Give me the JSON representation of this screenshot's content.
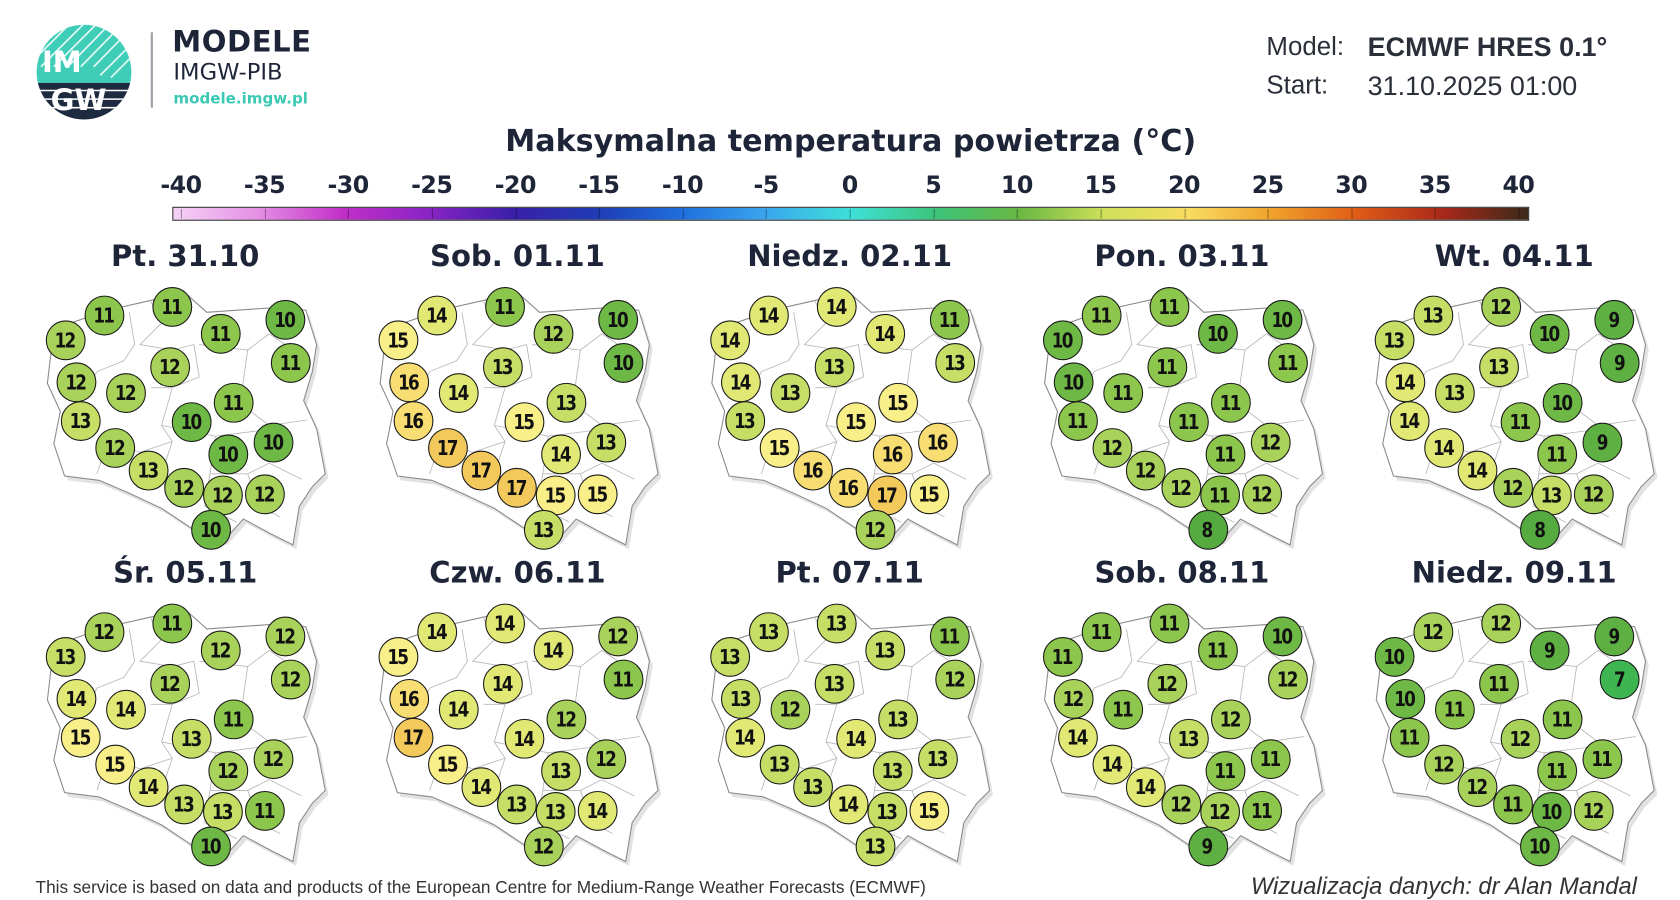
{
  "header": {
    "brand_title": "MODELE",
    "brand_subtitle": "IMGW-PIB",
    "brand_url": "modele.imgw.pl",
    "logo_text": "IMGW",
    "model_label": "Model:",
    "model_value": "ECMWF HRES 0.1°",
    "start_label": "Start:",
    "start_value": "31.10.2025 01:00"
  },
  "title": "Maksymalna temperatura powietrza (°C)",
  "colorbar": {
    "ticks": [
      "-40",
      "-35",
      "-30",
      "-25",
      "-20",
      "-15",
      "-10",
      "-5",
      "0",
      "5",
      "10",
      "15",
      "20",
      "25",
      "30",
      "35",
      "40"
    ],
    "stops": [
      {
        "v": -40,
        "color": "#f6d3f6"
      },
      {
        "v": -35,
        "color": "#e48fe4"
      },
      {
        "v": -30,
        "color": "#c22fc8"
      },
      {
        "v": -25,
        "color": "#8a24c4"
      },
      {
        "v": -20,
        "color": "#3a1fa8"
      },
      {
        "v": -15,
        "color": "#1f3cb4"
      },
      {
        "v": -10,
        "color": "#1f6fdc"
      },
      {
        "v": -5,
        "color": "#3aa6ee"
      },
      {
        "v": 0,
        "color": "#3ee0d8"
      },
      {
        "v": 5,
        "color": "#3cc47a"
      },
      {
        "v": 10,
        "color": "#6ab842"
      },
      {
        "v": 15,
        "color": "#cfe05a"
      },
      {
        "v": 20,
        "color": "#f8dc60"
      },
      {
        "v": 25,
        "color": "#f0a02a"
      },
      {
        "v": 30,
        "color": "#de5a16"
      },
      {
        "v": 35,
        "color": "#a8281a"
      },
      {
        "v": 40,
        "color": "#3c2a1a"
      }
    ]
  },
  "value_colors": {
    "7": "#3fb552",
    "8": "#55ab3f",
    "9": "#5fb043",
    "10": "#6eb845",
    "11": "#8dc64c",
    "12": "#a9d25a",
    "13": "#c6de66",
    "14": "#e1e873",
    "15": "#f9ef88",
    "16": "#f8de72",
    "17": "#f3c95c"
  },
  "days": [
    {
      "label": "Pt. 31.10",
      "values": [
        12,
        11,
        11,
        11,
        10,
        11,
        12,
        12,
        12,
        11,
        13,
        10,
        12,
        10,
        10,
        13,
        12,
        12,
        12,
        10
      ]
    },
    {
      "label": "Sob. 01.11",
      "values": [
        15,
        14,
        11,
        12,
        10,
        10,
        13,
        16,
        14,
        13,
        16,
        15,
        17,
        14,
        13,
        17,
        17,
        15,
        15,
        13
      ]
    },
    {
      "label": "Niedz. 02.11",
      "values": [
        14,
        14,
        14,
        14,
        11,
        13,
        13,
        14,
        13,
        15,
        13,
        15,
        15,
        16,
        16,
        16,
        16,
        17,
        15,
        12
      ]
    },
    {
      "label": "Pon. 03.11",
      "values": [
        10,
        11,
        11,
        10,
        10,
        11,
        11,
        10,
        11,
        11,
        11,
        11,
        12,
        11,
        12,
        12,
        12,
        11,
        12,
        8
      ]
    },
    {
      "label": "Wt. 04.11",
      "values": [
        13,
        13,
        12,
        10,
        9,
        9,
        13,
        14,
        13,
        10,
        14,
        11,
        14,
        11,
        9,
        14,
        12,
        13,
        12,
        8
      ]
    },
    {
      "label": "Śr. 05.11",
      "values": [
        13,
        12,
        11,
        12,
        12,
        12,
        12,
        14,
        14,
        11,
        15,
        13,
        15,
        12,
        12,
        14,
        13,
        13,
        11,
        10
      ]
    },
    {
      "label": "Czw. 06.11",
      "values": [
        15,
        14,
        14,
        14,
        12,
        11,
        14,
        16,
        14,
        12,
        17,
        14,
        15,
        13,
        12,
        14,
        13,
        13,
        14,
        12
      ]
    },
    {
      "label": "Pt. 07.11",
      "values": [
        13,
        13,
        13,
        13,
        11,
        12,
        13,
        13,
        12,
        13,
        14,
        14,
        13,
        13,
        13,
        13,
        14,
        13,
        15,
        13
      ]
    },
    {
      "label": "Sob. 08.11",
      "values": [
        11,
        11,
        11,
        11,
        10,
        12,
        12,
        12,
        11,
        12,
        14,
        13,
        14,
        11,
        11,
        14,
        12,
        12,
        11,
        9
      ]
    },
    {
      "label": "Niedz. 09.11",
      "values": [
        10,
        12,
        12,
        9,
        9,
        7,
        11,
        10,
        11,
        11,
        11,
        12,
        12,
        11,
        11,
        12,
        11,
        10,
        12,
        10
      ]
    }
  ],
  "footer": {
    "attribution": "This service is based on data and products of the European Centre for Medium-Range Weather Forecasts (ECMWF)",
    "credit": "Wizualizacja danych: dr Alan Mandal"
  }
}
